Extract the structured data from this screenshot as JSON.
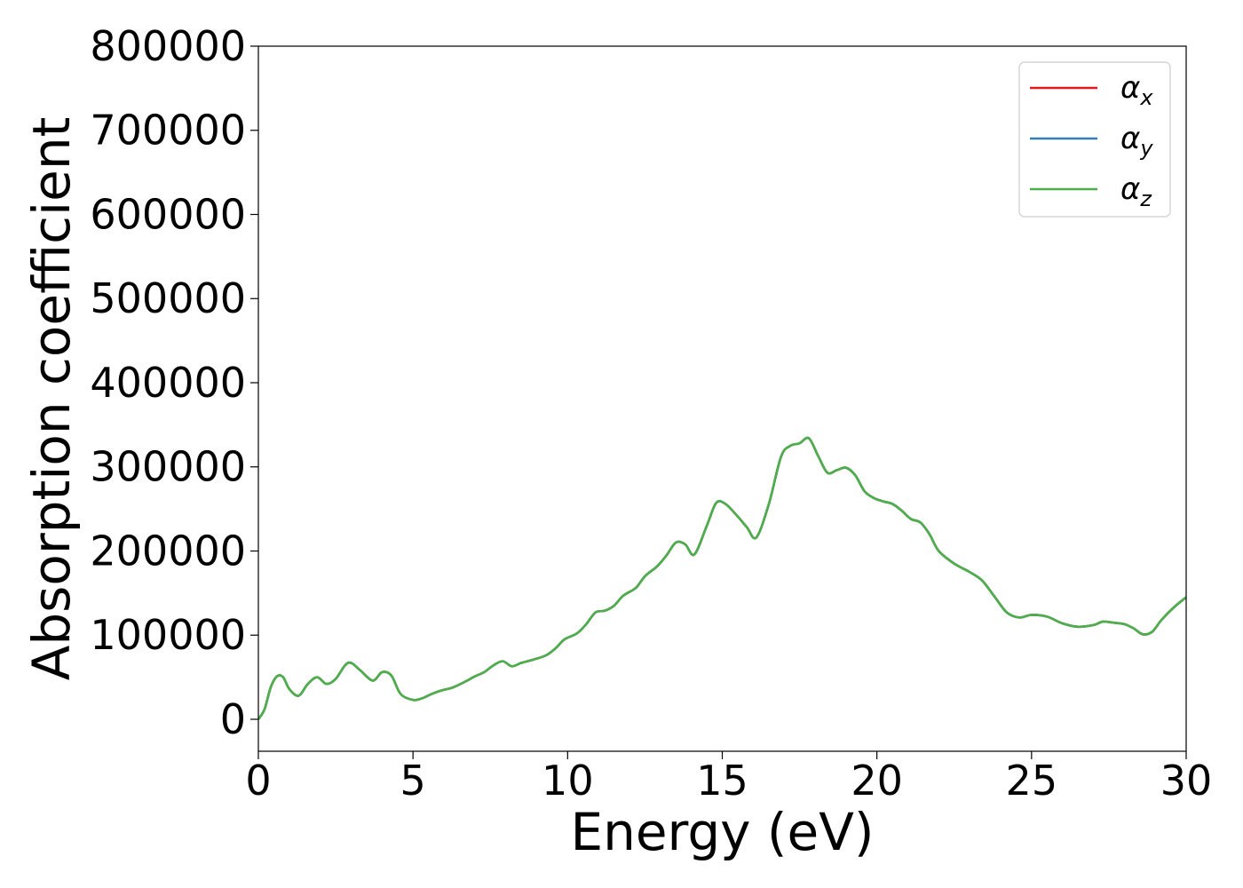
{
  "chart_data": {
    "type": "line",
    "title": "",
    "xlabel": "Energy (eV)",
    "ylabel": "Absorption coefficient",
    "xlim": [
      0,
      30
    ],
    "ylim": [
      -38000,
      800000
    ],
    "xticks": [
      0,
      5,
      10,
      15,
      20,
      25,
      30
    ],
    "yticks": [
      0,
      100000,
      200000,
      300000,
      400000,
      500000,
      600000,
      700000,
      800000
    ],
    "grid": false,
    "legend_position": "top-right",
    "series": [
      {
        "name": "α",
        "subscript": "x",
        "color": "#e41a1c",
        "x": [
          0,
          0.2,
          0.4,
          0.6,
          0.8,
          1.0,
          1.3,
          1.6,
          1.9,
          2.2,
          2.5,
          2.8,
          3.0,
          3.3,
          3.7,
          4.0,
          4.3,
          4.6,
          5.0,
          5.3,
          5.6,
          5.9,
          6.3,
          6.7,
          7.0,
          7.3,
          7.6,
          7.9,
          8.2,
          8.5,
          8.9,
          9.3,
          9.6,
          9.9,
          10.3,
          10.6,
          10.9,
          11.2,
          11.5,
          11.8,
          12.2,
          12.5,
          12.9,
          13.2,
          13.5,
          13.8,
          14.1,
          14.5,
          14.8,
          15.1,
          15.5,
          15.8,
          16.1,
          16.5,
          16.9,
          17.2,
          17.5,
          17.8,
          18.1,
          18.4,
          18.7,
          19.0,
          19.3,
          19.6,
          19.9,
          20.2,
          20.5,
          20.8,
          21.1,
          21.4,
          21.7,
          22.0,
          22.5,
          23.0,
          23.4,
          23.8,
          24.2,
          24.6,
          25.0,
          25.5,
          26.0,
          26.5,
          27.0,
          27.3,
          27.6,
          28.0,
          28.3,
          28.6,
          28.9,
          29.2,
          29.6,
          30.0
        ],
        "values": [
          0,
          12000,
          38000,
          51000,
          50000,
          36000,
          28000,
          42000,
          50000,
          42000,
          48000,
          64000,
          67000,
          58000,
          46000,
          56000,
          52000,
          30000,
          23000,
          25000,
          30000,
          34000,
          38000,
          45000,
          51000,
          56000,
          64000,
          69000,
          63000,
          67000,
          71000,
          76000,
          84000,
          95000,
          102000,
          113000,
          127000,
          129000,
          135000,
          147000,
          156000,
          170000,
          182000,
          195000,
          210000,
          208000,
          196000,
          230000,
          257000,
          256000,
          241000,
          228000,
          216000,
          255000,
          312000,
          325000,
          328000,
          334000,
          313000,
          293000,
          296000,
          299000,
          290000,
          271000,
          263000,
          259000,
          256000,
          248000,
          238000,
          234000,
          220000,
          200000,
          185000,
          175000,
          165000,
          146000,
          127000,
          121000,
          124000,
          122000,
          114000,
          110000,
          112000,
          116000,
          115000,
          113000,
          108000,
          101000,
          104000,
          118000,
          133000,
          145000
        ]
      },
      {
        "name": "α",
        "subscript": "y",
        "color": "#377eb8",
        "x": [
          0,
          0.2,
          0.4,
          0.6,
          0.8,
          1.0,
          1.3,
          1.6,
          1.9,
          2.2,
          2.5,
          2.8,
          3.0,
          3.3,
          3.7,
          4.0,
          4.3,
          4.6,
          5.0,
          5.3,
          5.6,
          5.9,
          6.3,
          6.7,
          7.0,
          7.3,
          7.6,
          7.9,
          8.2,
          8.5,
          8.9,
          9.3,
          9.6,
          9.9,
          10.3,
          10.6,
          10.9,
          11.2,
          11.5,
          11.8,
          12.2,
          12.5,
          12.9,
          13.2,
          13.5,
          13.8,
          14.1,
          14.5,
          14.8,
          15.1,
          15.5,
          15.8,
          16.1,
          16.5,
          16.9,
          17.2,
          17.5,
          17.8,
          18.1,
          18.4,
          18.7,
          19.0,
          19.3,
          19.6,
          19.9,
          20.2,
          20.5,
          20.8,
          21.1,
          21.4,
          21.7,
          22.0,
          22.5,
          23.0,
          23.4,
          23.8,
          24.2,
          24.6,
          25.0,
          25.5,
          26.0,
          26.5,
          27.0,
          27.3,
          27.6,
          28.0,
          28.3,
          28.6,
          28.9,
          29.2,
          29.6,
          30.0
        ],
        "values": [
          0,
          12000,
          38000,
          51000,
          50000,
          36000,
          28000,
          42000,
          50000,
          42000,
          48000,
          64000,
          67000,
          58000,
          46000,
          56000,
          52000,
          30000,
          23000,
          25000,
          30000,
          34000,
          38000,
          45000,
          51000,
          56000,
          64000,
          69000,
          63000,
          67000,
          71000,
          76000,
          84000,
          95000,
          102000,
          113000,
          127000,
          129000,
          135000,
          147000,
          156000,
          170000,
          182000,
          195000,
          210000,
          208000,
          196000,
          230000,
          257000,
          256000,
          241000,
          228000,
          216000,
          255000,
          312000,
          325000,
          328000,
          334000,
          313000,
          293000,
          296000,
          299000,
          290000,
          271000,
          263000,
          259000,
          256000,
          248000,
          238000,
          234000,
          220000,
          200000,
          185000,
          175000,
          165000,
          146000,
          127000,
          121000,
          124000,
          122000,
          114000,
          110000,
          112000,
          116000,
          115000,
          113000,
          108000,
          101000,
          104000,
          118000,
          133000,
          145000
        ]
      },
      {
        "name": "α",
        "subscript": "z",
        "color": "#4daf4a",
        "x": [
          0,
          0.2,
          0.4,
          0.6,
          0.8,
          1.0,
          1.3,
          1.6,
          1.9,
          2.2,
          2.5,
          2.8,
          3.0,
          3.3,
          3.7,
          4.0,
          4.3,
          4.6,
          5.0,
          5.3,
          5.6,
          5.9,
          6.3,
          6.7,
          7.0,
          7.3,
          7.6,
          7.9,
          8.2,
          8.5,
          8.9,
          9.3,
          9.6,
          9.9,
          10.3,
          10.6,
          10.9,
          11.2,
          11.5,
          11.8,
          12.2,
          12.5,
          12.9,
          13.2,
          13.5,
          13.8,
          14.1,
          14.5,
          14.8,
          15.1,
          15.5,
          15.8,
          16.1,
          16.5,
          16.9,
          17.2,
          17.5,
          17.8,
          18.1,
          18.4,
          18.7,
          19.0,
          19.3,
          19.6,
          19.9,
          20.2,
          20.5,
          20.8,
          21.1,
          21.4,
          21.7,
          22.0,
          22.5,
          23.0,
          23.4,
          23.8,
          24.2,
          24.6,
          25.0,
          25.5,
          26.0,
          26.5,
          27.0,
          27.3,
          27.6,
          28.0,
          28.3,
          28.6,
          28.9,
          29.2,
          29.6,
          30.0
        ],
        "values": [
          0,
          12000,
          38000,
          51000,
          50000,
          36000,
          28000,
          42000,
          50000,
          42000,
          48000,
          64000,
          67000,
          58000,
          46000,
          56000,
          52000,
          30000,
          23000,
          25000,
          30000,
          34000,
          38000,
          45000,
          51000,
          56000,
          64000,
          69000,
          63000,
          67000,
          71000,
          76000,
          84000,
          95000,
          102000,
          113000,
          127000,
          129000,
          135000,
          147000,
          156000,
          170000,
          182000,
          195000,
          210000,
          208000,
          196000,
          230000,
          257000,
          256000,
          241000,
          228000,
          216000,
          255000,
          312000,
          325000,
          328000,
          334000,
          313000,
          293000,
          296000,
          299000,
          290000,
          271000,
          263000,
          259000,
          256000,
          248000,
          238000,
          234000,
          220000,
          200000,
          185000,
          175000,
          165000,
          146000,
          127000,
          121000,
          124000,
          122000,
          114000,
          110000,
          112000,
          116000,
          115000,
          113000,
          108000,
          101000,
          104000,
          118000,
          133000,
          145000
        ]
      }
    ]
  }
}
